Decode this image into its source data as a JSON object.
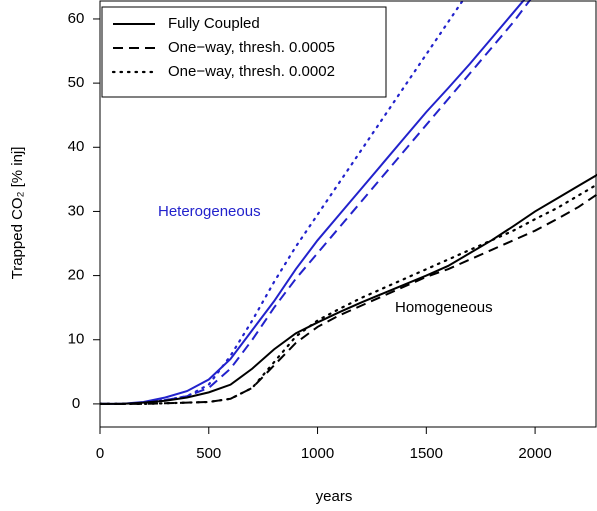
{
  "chart_data": {
    "type": "line",
    "x_label": "years",
    "y_label": "Trapped CO₂ [% inj]",
    "x": [
      0,
      100,
      200,
      300,
      400,
      500,
      600,
      700,
      800,
      900,
      1000,
      1100,
      1200,
      1300,
      1400,
      1500,
      1600,
      1700,
      1800,
      1900,
      2000,
      2100,
      2200,
      2300
    ],
    "xlim": [
      0,
      2280
    ],
    "ylim": [
      -3.6,
      62.8
    ],
    "xticks": [
      0,
      500,
      1000,
      1500,
      2000
    ],
    "yticks": [
      0,
      10,
      20,
      30,
      40,
      50,
      60
    ],
    "legend_position": "top-left",
    "legend": [
      {
        "name": "Fully Coupled",
        "dash": "solid"
      },
      {
        "name": "One−way, thresh. 0.0005",
        "dash": "dashed"
      },
      {
        "name": "One−way, thresh. 0.0002",
        "dash": "dotted"
      }
    ],
    "annotations": [
      {
        "text": "Heterogeneous",
        "color": "#2222cc"
      },
      {
        "text": "Homogeneous",
        "color": "#000000"
      }
    ],
    "series": [
      {
        "dash": "solid",
        "color": "#2222cc",
        "values": [
          0,
          0,
          0.3,
          1,
          2,
          3.8,
          7,
          11.5,
          16,
          21,
          25.5,
          29.5,
          33.5,
          37.5,
          41.5,
          45.5,
          49.2,
          53,
          57,
          61,
          65,
          null,
          null,
          null
        ]
      },
      {
        "dash": "dashed",
        "color": "#2222cc",
        "values": [
          0,
          0,
          0.2,
          0.6,
          1.2,
          2.5,
          5.5,
          10,
          15,
          19.5,
          23.5,
          27.5,
          31.5,
          35.5,
          39.5,
          43.5,
          47.5,
          51.5,
          55.5,
          59.5,
          64,
          null,
          null,
          null
        ]
      },
      {
        "dash": "dotted",
        "color": "#2222cc",
        "values": [
          0,
          0,
          0.2,
          0.6,
          1.2,
          3,
          7.5,
          13,
          19,
          24.5,
          29.5,
          34.5,
          39.5,
          44.5,
          49.5,
          54.5,
          59.5,
          64.5,
          null,
          null,
          null,
          null,
          null,
          null
        ]
      },
      {
        "dash": "solid",
        "color": "#000000",
        "values": [
          0,
          0,
          0.2,
          0.5,
          1,
          1.8,
          3,
          5.5,
          8.5,
          11,
          12.7,
          14.3,
          15.8,
          17.2,
          18.6,
          20,
          21.5,
          23.5,
          25.5,
          27.7,
          30,
          32,
          34,
          36
        ]
      },
      {
        "dash": "dashed",
        "color": "#000000",
        "values": [
          0,
          0,
          0,
          0.1,
          0.2,
          0.3,
          0.8,
          2.5,
          6,
          9.5,
          12,
          13.8,
          15.3,
          16.8,
          18.3,
          19.8,
          21,
          22.5,
          24,
          25.5,
          27,
          28.8,
          30.7,
          33
        ]
      },
      {
        "dash": "dotted",
        "color": "#000000",
        "values": [
          0,
          0,
          0,
          0.1,
          0.2,
          0.3,
          0.8,
          2.5,
          6.5,
          10.5,
          13,
          14.8,
          16.5,
          18,
          19.5,
          21,
          22.5,
          24,
          25.5,
          27,
          28.8,
          30.5,
          32.5,
          34.5
        ]
      }
    ]
  }
}
